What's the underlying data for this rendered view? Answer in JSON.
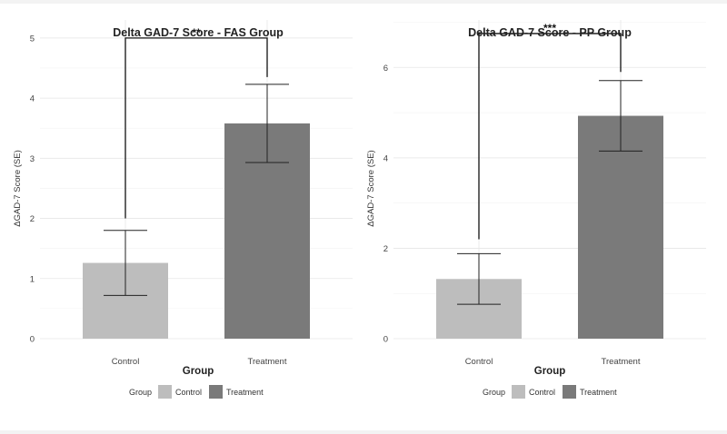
{
  "chart_data": [
    {
      "type": "bar",
      "title": "Delta GAD-7 Score - FAS Group",
      "xlabel": "Group",
      "ylabel": "ΔGAD-7 Score (SE)",
      "categories": [
        "Control",
        "Treatment"
      ],
      "values": [
        1.26,
        3.58
      ],
      "errors": [
        0.54,
        0.65
      ],
      "colors": [
        "#bdbdbd",
        "#7a7a7a"
      ],
      "ylim": [
        0,
        5.3
      ],
      "yticks": [
        0,
        1,
        2,
        3,
        4,
        5
      ],
      "significance": {
        "label": "**",
        "left_start": 2.0,
        "right_start": 4.35,
        "top": 5.0
      },
      "legend": {
        "title": "Group",
        "items": [
          "Control",
          "Treatment"
        ],
        "placement": "bottom"
      }
    },
    {
      "type": "bar",
      "title": "Delta GAD-7 Score - PP Group",
      "xlabel": "Group",
      "ylabel": "ΔGAD-7 Score (SE)",
      "categories": [
        "Control",
        "Treatment"
      ],
      "values": [
        1.32,
        4.93
      ],
      "errors": [
        0.56,
        0.78
      ],
      "colors": [
        "#bdbdbd",
        "#7a7a7a"
      ],
      "ylim": [
        0,
        7.05
      ],
      "yticks": [
        0,
        2,
        4,
        6
      ],
      "significance": {
        "label": "***",
        "left_start": 2.2,
        "right_start": 5.9,
        "top": 6.75
      },
      "legend": {
        "title": "Group",
        "items": [
          "Control",
          "Treatment"
        ],
        "placement": "bottom"
      }
    }
  ]
}
